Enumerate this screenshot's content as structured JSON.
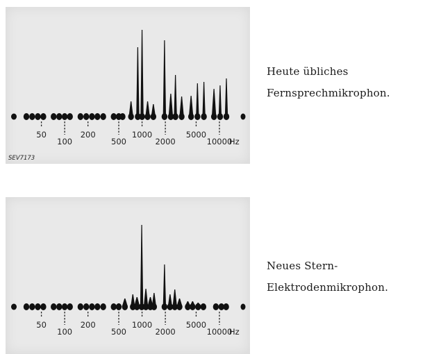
{
  "chart_data": [
    {
      "type": "bar",
      "unit": "Hz",
      "tick_labels": [
        "50",
        "100",
        "200",
        "500",
        "1000",
        "2000",
        "5000",
        "10000"
      ],
      "tick_x": [
        50,
        100,
        200,
        500,
        1000,
        2000,
        5000,
        10000
      ],
      "code": "SEV7173",
      "caption_lines": [
        "Heute übliches",
        "Fernsprechmikrophon."
      ],
      "spectrum": [
        {
          "f": 32,
          "a": 0
        },
        {
          "f": 38,
          "a": 0
        },
        {
          "f": 45,
          "a": 0
        },
        {
          "f": 53,
          "a": 0
        },
        {
          "f": 72,
          "a": 0
        },
        {
          "f": 85,
          "a": 0
        },
        {
          "f": 100,
          "a": 0
        },
        {
          "f": 117,
          "a": 0
        },
        {
          "f": 160,
          "a": 0
        },
        {
          "f": 190,
          "a": 0
        },
        {
          "f": 225,
          "a": 0
        },
        {
          "f": 265,
          "a": 0
        },
        {
          "f": 315,
          "a": 0
        },
        {
          "f": 430,
          "a": 0
        },
        {
          "f": 500,
          "a": 0
        },
        {
          "f": 560,
          "a": 0
        },
        {
          "f": 720,
          "a": 22
        },
        {
          "f": 880,
          "a": 100
        },
        {
          "f": 1000,
          "a": 125
        },
        {
          "f": 1180,
          "a": 22
        },
        {
          "f": 1400,
          "a": 18
        },
        {
          "f": 1950,
          "a": 110
        },
        {
          "f": 2350,
          "a": 33
        },
        {
          "f": 2700,
          "a": 60
        },
        {
          "f": 3250,
          "a": 29
        },
        {
          "f": 4300,
          "a": 30
        },
        {
          "f": 5200,
          "a": 48
        },
        {
          "f": 6300,
          "a": 50
        },
        {
          "f": 8500,
          "a": 40
        },
        {
          "f": 10200,
          "a": 45
        },
        {
          "f": 12300,
          "a": 55
        }
      ]
    },
    {
      "type": "bar",
      "unit": "Hz",
      "tick_labels": [
        "50",
        "100",
        "200",
        "500",
        "1000",
        "2000",
        "5000",
        "10000"
      ],
      "tick_x": [
        50,
        100,
        200,
        500,
        1000,
        2000,
        5000,
        10000
      ],
      "code": "",
      "caption_lines": [
        "Neues Stern-",
        "Elektrodenmikrophon."
      ],
      "spectrum": [
        {
          "f": 32,
          "a": 0
        },
        {
          "f": 38,
          "a": 0
        },
        {
          "f": 45,
          "a": 0
        },
        {
          "f": 53,
          "a": 0
        },
        {
          "f": 72,
          "a": 0
        },
        {
          "f": 85,
          "a": 0
        },
        {
          "f": 100,
          "a": 0
        },
        {
          "f": 117,
          "a": 0
        },
        {
          "f": 160,
          "a": 0
        },
        {
          "f": 190,
          "a": 0
        },
        {
          "f": 225,
          "a": 0
        },
        {
          "f": 265,
          "a": 0
        },
        {
          "f": 315,
          "a": 0
        },
        {
          "f": 430,
          "a": 0
        },
        {
          "f": 500,
          "a": 5
        },
        {
          "f": 600,
          "a": 12
        },
        {
          "f": 760,
          "a": 18
        },
        {
          "f": 860,
          "a": 14
        },
        {
          "f": 990,
          "a": 118
        },
        {
          "f": 1120,
          "a": 26
        },
        {
          "f": 1280,
          "a": 14
        },
        {
          "f": 1430,
          "a": 20
        },
        {
          "f": 1950,
          "a": 61
        },
        {
          "f": 2300,
          "a": 18
        },
        {
          "f": 2650,
          "a": 25
        },
        {
          "f": 3050,
          "a": 12
        },
        {
          "f": 3900,
          "a": 8
        },
        {
          "f": 4500,
          "a": 8
        },
        {
          "f": 5300,
          "a": 6
        },
        {
          "f": 6200,
          "a": 3
        },
        {
          "f": 9000,
          "a": 0
        },
        {
          "f": 10600,
          "a": 0
        },
        {
          "f": 12200,
          "a": 0
        }
      ]
    }
  ]
}
